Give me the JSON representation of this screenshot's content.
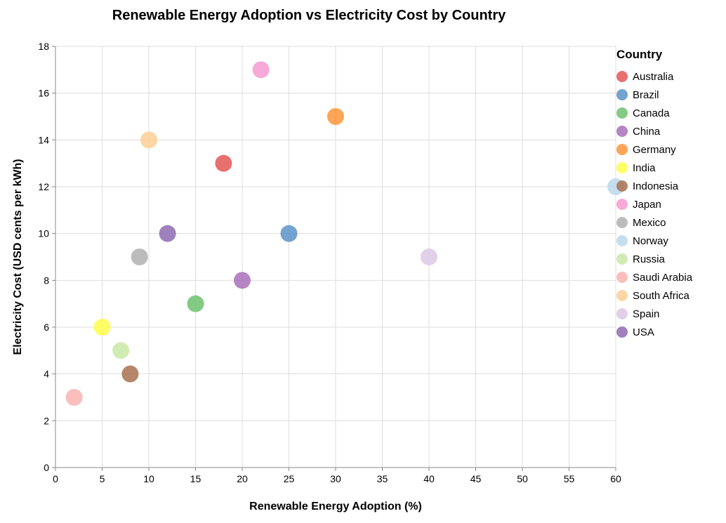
{
  "chart_data": {
    "type": "scatter",
    "title": "Renewable Energy Adoption vs Electricity Cost by Country",
    "xlabel": "Renewable Energy Adoption (%)",
    "ylabel": "Electricity Cost (USD cents per kWh)",
    "xlim": [
      0,
      60
    ],
    "ylim": [
      0,
      18
    ],
    "x_ticks": [
      0,
      5,
      10,
      15,
      20,
      25,
      30,
      35,
      40,
      45,
      50,
      55,
      60
    ],
    "y_ticks": [
      0,
      2,
      4,
      6,
      8,
      10,
      12,
      14,
      16,
      18
    ],
    "grid": true,
    "legend": {
      "title": "Country",
      "placement": "right"
    },
    "points": [
      {
        "country": "Australia",
        "x": 18,
        "y": 13,
        "color": "#e45756"
      },
      {
        "country": "Brazil",
        "x": 25,
        "y": 10,
        "color": "#5b93c5"
      },
      {
        "country": "Canada",
        "x": 15,
        "y": 7,
        "color": "#6dc26e"
      },
      {
        "country": "China",
        "x": 20,
        "y": 8,
        "color": "#a970b8"
      },
      {
        "country": "Germany",
        "x": 30,
        "y": 15,
        "color": "#ff9539"
      },
      {
        "country": "India",
        "x": 5,
        "y": 6,
        "color": "#ffff4a"
      },
      {
        "country": "Indonesia",
        "x": 8,
        "y": 4,
        "color": "#a8714f"
      },
      {
        "country": "Japan",
        "x": 22,
        "y": 17,
        "color": "#f69bd0"
      },
      {
        "country": "Mexico",
        "x": 9,
        "y": 9,
        "color": "#b0b0b0"
      },
      {
        "country": "Norway",
        "x": 60,
        "y": 12,
        "color": "#bcd9ec"
      },
      {
        "country": "Russia",
        "x": 7,
        "y": 5,
        "color": "#c9e9a4"
      },
      {
        "country": "Saudi Arabia",
        "x": 2,
        "y": 3,
        "color": "#f9b3b1"
      },
      {
        "country": "South Africa",
        "x": 10,
        "y": 14,
        "color": "#fdcf95"
      },
      {
        "country": "Spain",
        "x": 40,
        "y": 9,
        "color": "#dcc9e4"
      },
      {
        "country": "USA",
        "x": 12,
        "y": 10,
        "color": "#8e6bb2"
      }
    ]
  }
}
